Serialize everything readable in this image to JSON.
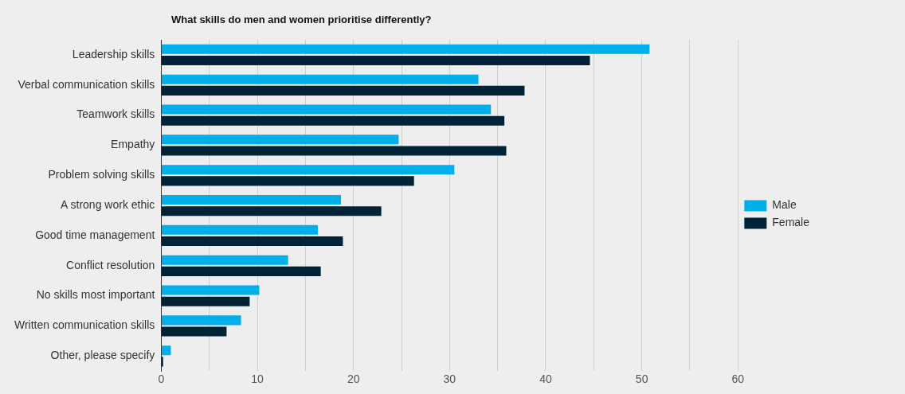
{
  "chart_data": {
    "type": "bar",
    "orientation": "horizontal",
    "title": "What skills do men and women prioritise differently?",
    "categories": [
      "Leadership skills",
      "Verbal communication skills",
      "Teamwork skills",
      "Empathy",
      "Problem solving skills",
      "A strong work ethic",
      "Good time management",
      "Conflict resolution",
      "No skills most important",
      "Written communication skills",
      "Other, please specify"
    ],
    "series": [
      {
        "name": "Male",
        "color": "#00aeea",
        "values": [
          50.8,
          33.0,
          34.3,
          24.7,
          30.5,
          18.7,
          16.3,
          13.2,
          10.2,
          8.3,
          1.0
        ]
      },
      {
        "name": "Female",
        "color": "#002337",
        "values": [
          44.6,
          37.8,
          35.7,
          35.9,
          26.3,
          22.9,
          18.9,
          16.6,
          9.2,
          6.8,
          0.2
        ]
      }
    ],
    "xlim": [
      0,
      60
    ],
    "xticks": [
      0,
      {
        "value": 5,
        "label": null
      },
      10,
      {
        "value": 15,
        "label": null
      },
      20,
      {
        "value": 25,
        "label": null
      },
      30,
      {
        "value": 35,
        "label": null
      },
      40,
      {
        "value": 45,
        "label": null
      },
      50,
      {
        "value": 55,
        "label": null
      },
      60
    ],
    "grid": true,
    "legend": "right"
  }
}
